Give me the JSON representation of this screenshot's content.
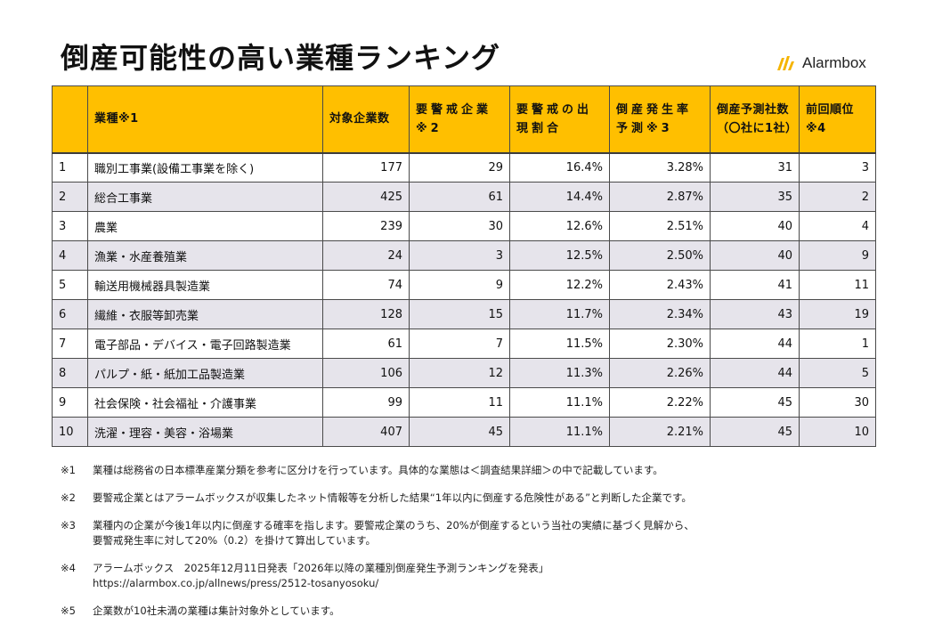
{
  "title": "倒産可能性の高い業種ランキング",
  "logo": {
    "text": "Alarmbox",
    "brand_color": "#f5b400"
  },
  "table": {
    "header_color": "#ffbf00",
    "headers": {
      "rank": "",
      "industry": "業種※1",
      "companies": "対象企業数",
      "watch": "要警戒企業※2",
      "watch_rate": "要警戒の出現割合",
      "bankruptcy_rate": "倒産発生率予測※3",
      "predicted": "倒産予測社数（〇社に1社）",
      "previous": "前回順位※4"
    },
    "rows": [
      {
        "rank": "1",
        "industry": "職別工事業(設備工事業を除く)",
        "companies": "177",
        "watch": "29",
        "watch_rate": "16.4%",
        "bankruptcy_rate": "3.28%",
        "predicted": "31",
        "previous": "3"
      },
      {
        "rank": "2",
        "industry": "総合工事業",
        "companies": "425",
        "watch": "61",
        "watch_rate": "14.4%",
        "bankruptcy_rate": "2.87%",
        "predicted": "35",
        "previous": "2"
      },
      {
        "rank": "3",
        "industry": "農業",
        "companies": "239",
        "watch": "30",
        "watch_rate": "12.6%",
        "bankruptcy_rate": "2.51%",
        "predicted": "40",
        "previous": "4"
      },
      {
        "rank": "4",
        "industry": "漁業・水産養殖業",
        "companies": "24",
        "watch": "3",
        "watch_rate": "12.5%",
        "bankruptcy_rate": "2.50%",
        "predicted": "40",
        "previous": "9"
      },
      {
        "rank": "5",
        "industry": "輸送用機械器具製造業",
        "companies": "74",
        "watch": "9",
        "watch_rate": "12.2%",
        "bankruptcy_rate": "2.43%",
        "predicted": "41",
        "previous": "11"
      },
      {
        "rank": "6",
        "industry": "繊維・衣服等卸売業",
        "companies": "128",
        "watch": "15",
        "watch_rate": "11.7%",
        "bankruptcy_rate": "2.34%",
        "predicted": "43",
        "previous": "19"
      },
      {
        "rank": "7",
        "industry": "電子部品・デバイス・電子回路製造業",
        "companies": "61",
        "watch": "7",
        "watch_rate": "11.5%",
        "bankruptcy_rate": "2.30%",
        "predicted": "44",
        "previous": "1"
      },
      {
        "rank": "8",
        "industry": "パルプ・紙・紙加工品製造業",
        "companies": "106",
        "watch": "12",
        "watch_rate": "11.3%",
        "bankruptcy_rate": "2.26%",
        "predicted": "44",
        "previous": "5"
      },
      {
        "rank": "9",
        "industry": "社会保険・社会福祉・介護事業",
        "companies": "99",
        "watch": "11",
        "watch_rate": "11.1%",
        "bankruptcy_rate": "2.22%",
        "predicted": "45",
        "previous": "30"
      },
      {
        "rank": "10",
        "industry": "洗濯・理容・美容・浴場業",
        "companies": "407",
        "watch": "45",
        "watch_rate": "11.1%",
        "bankruptcy_rate": "2.21%",
        "predicted": "45",
        "previous": "10"
      }
    ]
  },
  "notes": [
    {
      "mark": "※1",
      "lines": [
        "業種は総務省の日本標準産業分類を参考に区分けを行っています。具体的な業態は＜調査結果詳細＞の中で記載しています。"
      ]
    },
    {
      "mark": "※2",
      "lines": [
        "要警戒企業とはアラームボックスが収集したネット情報等を分析した結果“1年以内に倒産する危険性がある”と判断した企業です。"
      ]
    },
    {
      "mark": "※3",
      "lines": [
        "業種内の企業が今後1年以内に倒産する確率を指します。要警戒企業のうち、20%が倒産するという当社の実績に基づく見解から、",
        "要警戒発生率に対して20%（0.2）を掛けて算出しています。"
      ]
    },
    {
      "mark": "※4",
      "lines": [
        "アラームボックス　2025年12月11日発表「2026年以降の業種別倒産発生予測ランキングを発表」",
        "https://alarmbox.co.jp/allnews/press/2512-tosanyosoku/"
      ]
    },
    {
      "mark": "※5",
      "lines": [
        "企業数が10社未満の業種は集計対象外としています。"
      ]
    }
  ]
}
